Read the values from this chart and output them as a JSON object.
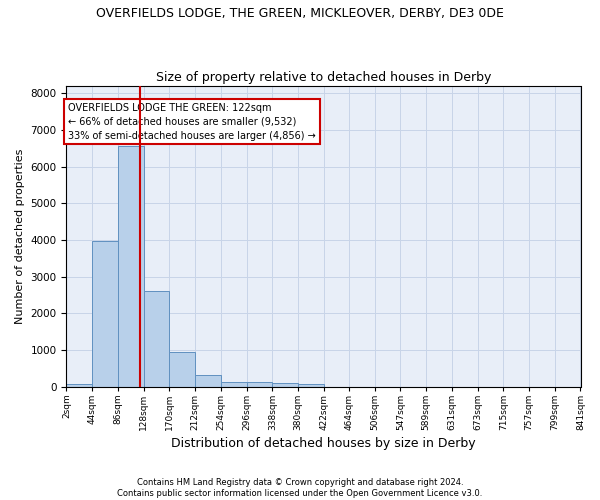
{
  "title": "OVERFIELDS LODGE, THE GREEN, MICKLEOVER, DERBY, DE3 0DE",
  "subtitle": "Size of property relative to detached houses in Derby",
  "xlabel": "Distribution of detached houses by size in Derby",
  "ylabel": "Number of detached properties",
  "footer_line1": "Contains HM Land Registry data © Crown copyright and database right 2024.",
  "footer_line2": "Contains public sector information licensed under the Open Government Licence v3.0.",
  "bin_edges": [
    2,
    44,
    86,
    128,
    170,
    212,
    254,
    296,
    338,
    380,
    422,
    464,
    506,
    547,
    589,
    631,
    673,
    715,
    757,
    799,
    841
  ],
  "bar_heights": [
    80,
    3980,
    6560,
    2620,
    960,
    310,
    130,
    130,
    100,
    80,
    0,
    0,
    0,
    0,
    0,
    0,
    0,
    0,
    0,
    0
  ],
  "bar_color": "#b8d0ea",
  "bar_edge_color": "#6090c0",
  "grid_color": "#c8d4e8",
  "background_color": "#e8eef8",
  "vline_x": 122,
  "vline_color": "#cc0000",
  "annotation_text": "OVERFIELDS LODGE THE GREEN: 122sqm\n← 66% of detached houses are smaller (9,532)\n33% of semi-detached houses are larger (4,856) →",
  "annotation_box_color": "#cc0000",
  "ylim": [
    0,
    8200
  ],
  "yticks": [
    0,
    1000,
    2000,
    3000,
    4000,
    5000,
    6000,
    7000,
    8000
  ]
}
